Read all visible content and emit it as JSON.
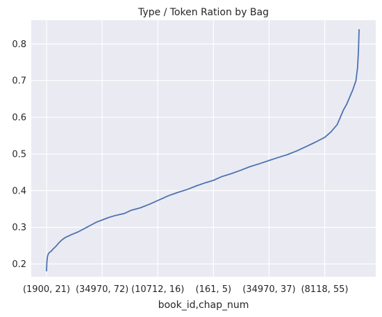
{
  "chart_data": {
    "type": "line",
    "title": "Type / Token Ration by Bag",
    "xlabel": "book_id,chap_num",
    "ylabel": "",
    "x_tick_labels": [
      "(1900, 21)",
      "(34970, 72)",
      "(10712, 16)",
      "(161, 5)",
      "(34970, 37)",
      "(8118, 55)"
    ],
    "x_tick_positions": [
      0,
      0.178,
      0.356,
      0.534,
      0.712,
      0.89
    ],
    "ylim": [
      0.165,
      0.865
    ],
    "yticks": [
      0.2,
      0.3,
      0.4,
      0.5,
      0.6,
      0.7,
      0.8
    ],
    "ytick_labels": [
      "0.2",
      "0.3",
      "0.4",
      "0.5",
      "0.6",
      "0.7",
      "0.8"
    ],
    "grid": true,
    "series": [
      {
        "color": "#4c72b0",
        "x": [
          0,
          0.001,
          0.003,
          0.006,
          0.01,
          0.015,
          0.02,
          0.03,
          0.04,
          0.05,
          0.06,
          0.07,
          0.08,
          0.1,
          0.12,
          0.14,
          0.16,
          0.178,
          0.2,
          0.22,
          0.25,
          0.27,
          0.3,
          0.33,
          0.356,
          0.39,
          0.42,
          0.45,
          0.48,
          0.51,
          0.534,
          0.56,
          0.59,
          0.62,
          0.65,
          0.68,
          0.712,
          0.74,
          0.77,
          0.8,
          0.83,
          0.86,
          0.89,
          0.91,
          0.93,
          0.94,
          0.95,
          0.96,
          0.97,
          0.98,
          0.99,
          0.995,
          0.998,
          1.0
        ],
        "values": [
          0.18,
          0.205,
          0.22,
          0.228,
          0.232,
          0.235,
          0.24,
          0.248,
          0.258,
          0.266,
          0.272,
          0.276,
          0.28,
          0.287,
          0.296,
          0.305,
          0.314,
          0.32,
          0.327,
          0.332,
          0.338,
          0.346,
          0.353,
          0.363,
          0.373,
          0.386,
          0.395,
          0.403,
          0.413,
          0.422,
          0.428,
          0.438,
          0.446,
          0.455,
          0.465,
          0.473,
          0.482,
          0.49,
          0.498,
          0.508,
          0.52,
          0.532,
          0.545,
          0.56,
          0.58,
          0.6,
          0.62,
          0.635,
          0.655,
          0.675,
          0.7,
          0.735,
          0.78,
          0.84
        ]
      }
    ]
  }
}
